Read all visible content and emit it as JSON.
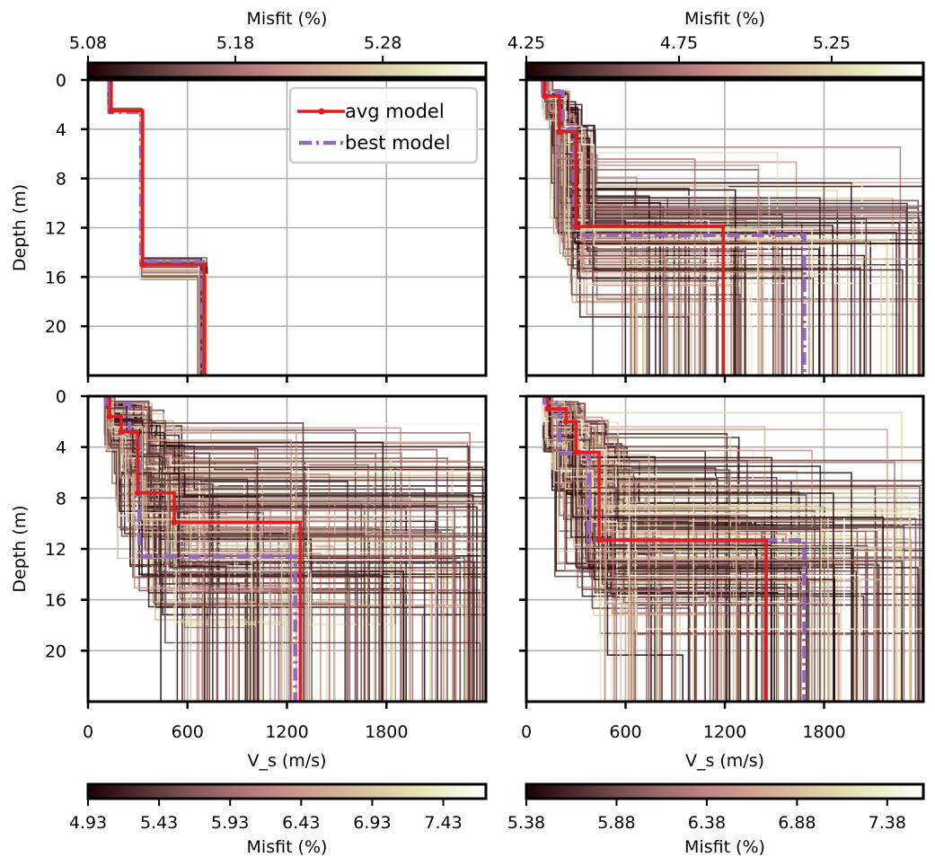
{
  "chart_data": {
    "type": "line",
    "title": "",
    "legend": {
      "placement": "top-right",
      "panel": 0,
      "entries": [
        {
          "label": "avg model",
          "color": "#e41a1c",
          "style": "solid-with-markers"
        },
        {
          "label": "best model",
          "color": "#9467bd",
          "style": "dash-dot"
        }
      ]
    },
    "shared": {
      "xlabel": "V_s (m/s)",
      "ylabel": "Depth (m)",
      "xlim": [
        0,
        2400
      ],
      "ylim": [
        24,
        0
      ],
      "xticks": [
        0,
        600,
        1200,
        1800
      ],
      "yticks": [
        0,
        4,
        8,
        12,
        16,
        20
      ],
      "grid": true,
      "colormap": "pink"
    },
    "panels": [
      {
        "id": "top-left",
        "colorbar": {
          "label": "Misfit (%)",
          "position": "top",
          "min": 5.08,
          "max": 5.35,
          "ticks": [
            "5.08",
            "5.18",
            "5.28"
          ]
        },
        "avg_model": {
          "vs": [
            140,
            330,
            700
          ],
          "depth_tops": [
            0,
            2.5,
            15.0
          ]
        },
        "best_model": {
          "vs": [
            130,
            320,
            690
          ],
          "depth_tops": [
            0,
            2.6,
            14.8
          ]
        },
        "ensemble": {
          "count": 60,
          "spread": "narrow"
        }
      },
      {
        "id": "top-right",
        "colorbar": {
          "label": "Misfit (%)",
          "position": "top",
          "min": 4.25,
          "max": 5.55,
          "ticks": [
            "4.25",
            "4.75",
            "5.25"
          ]
        },
        "avg_model": {
          "vs": [
            110,
            200,
            300,
            1190
          ],
          "depth_tops": [
            0,
            1.3,
            4.2,
            11.9
          ]
        },
        "best_model": {
          "vs": [
            100,
            220,
            290,
            1680
          ],
          "depth_tops": [
            0,
            1.0,
            4.0,
            12.6
          ]
        },
        "ensemble": {
          "count": 160,
          "spread": "wide"
        }
      },
      {
        "id": "bottom-left",
        "colorbar": {
          "label": "Misfit (%)",
          "position": "bottom",
          "min": 4.93,
          "max": 7.73,
          "ticks": [
            "4.93",
            "5.43",
            "5.93",
            "6.43",
            "6.93",
            "7.43"
          ]
        },
        "avg_model": {
          "vs": [
            130,
            200,
            300,
            520,
            1280
          ],
          "depth_tops": [
            0,
            1.6,
            2.8,
            7.6,
            9.9
          ]
        },
        "best_model": {
          "vs": [
            110,
            250,
            310,
            1250
          ],
          "depth_tops": [
            0,
            0.6,
            2.8,
            12.6
          ]
        },
        "ensemble": {
          "count": 220,
          "spread": "wide"
        }
      },
      {
        "id": "bottom-right",
        "colorbar": {
          "label": "Misfit (%)",
          "position": "bottom",
          "min": 5.38,
          "max": 7.58,
          "ticks": [
            "5.38",
            "5.88",
            "6.38",
            "6.88",
            "7.38"
          ]
        },
        "avg_model": {
          "vs": [
            130,
            240,
            300,
            440,
            1450
          ],
          "depth_tops": [
            0,
            1.0,
            2.0,
            4.4,
            11.3
          ]
        },
        "best_model": {
          "vs": [
            110,
            200,
            380,
            1680
          ],
          "depth_tops": [
            0,
            0.5,
            4.5,
            11.3
          ]
        },
        "ensemble": {
          "count": 220,
          "spread": "wide"
        }
      }
    ]
  }
}
